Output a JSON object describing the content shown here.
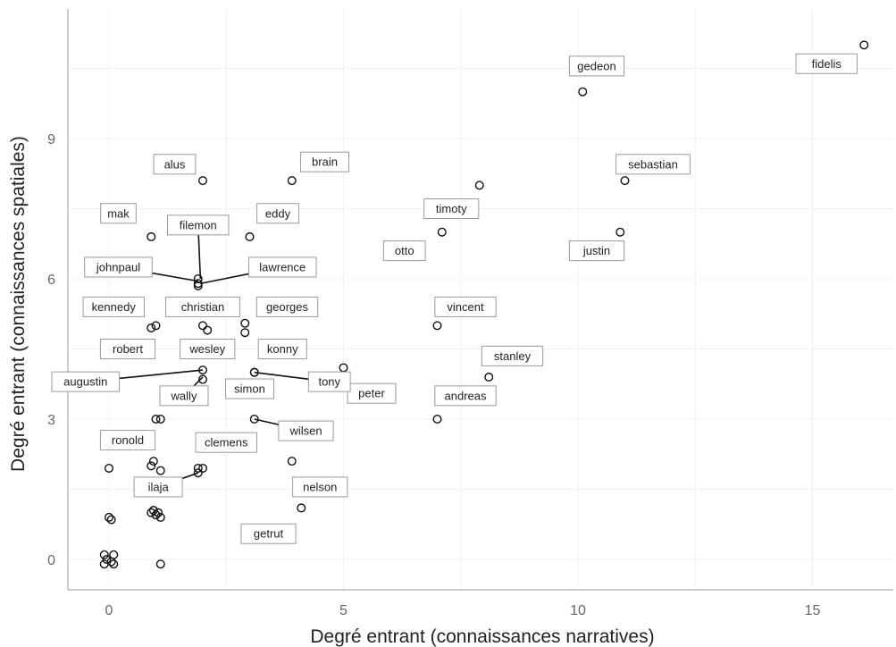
{
  "chart_data": {
    "type": "scatter",
    "title": "",
    "xlabel": "Degré entrant (connaissances narratives)",
    "ylabel": "Degré entrant (connaissances spatiales)",
    "xlim": [
      -1.5,
      16.5
    ],
    "ylim": [
      -0.8,
      11.6
    ],
    "xticks": [
      0,
      5,
      10,
      15
    ],
    "yticks": [
      0,
      3,
      6,
      9
    ],
    "grid": true,
    "points": [
      {
        "name": "fidelis",
        "x": 16.1,
        "y": 11.0
      },
      {
        "name": "gedeon",
        "x": 10.1,
        "y": 10.0
      },
      {
        "name": "sebastian",
        "x": 11.0,
        "y": 8.1
      },
      {
        "name": "justin",
        "x": 10.9,
        "y": 7.0
      },
      {
        "name": "timoty",
        "x": 7.9,
        "y": 8.0
      },
      {
        "name": "otto",
        "x": 7.1,
        "y": 7.0
      },
      {
        "name": "vincent",
        "x": 7.0,
        "y": 5.0
      },
      {
        "name": "stanley",
        "x": 8.1,
        "y": 3.9
      },
      {
        "name": "andreas",
        "x": 7.0,
        "y": 3.0
      },
      {
        "name": "peter",
        "x": 5.0,
        "y": 4.1
      },
      {
        "name": "brain",
        "x": 3.9,
        "y": 8.1
      },
      {
        "name": "alus",
        "x": 2.0,
        "y": 8.1
      },
      {
        "name": "eddy",
        "x": 3.0,
        "y": 6.9
      },
      {
        "name": "mak",
        "x": 0.9,
        "y": 6.9
      },
      {
        "name": "filemon",
        "x": 1.9,
        "y": 6.0
      },
      {
        "name": "johnpaul",
        "x": 1.9,
        "y": 5.9
      },
      {
        "name": "lawrence",
        "x": 1.9,
        "y": 5.85
      },
      {
        "name": "kennedy",
        "x": 0.9,
        "y": 4.95
      },
      {
        "name": "robert",
        "x": 1.0,
        "y": 5.0
      },
      {
        "name": "christian",
        "x": 2.0,
        "y": 5.0
      },
      {
        "name": "wesley",
        "x": 2.1,
        "y": 4.9
      },
      {
        "name": "georges",
        "x": 2.9,
        "y": 5.05
      },
      {
        "name": "konny",
        "x": 2.9,
        "y": 4.85
      },
      {
        "name": "augustin",
        "x": 2.0,
        "y": 4.05
      },
      {
        "name": "wally",
        "x": 2.0,
        "y": 3.85
      },
      {
        "name": "simon",
        "x": 3.1,
        "y": 4.0
      },
      {
        "name": "tony",
        "x": 3.1,
        "y": 4.0
      },
      {
        "name": "wilsen",
        "x": 3.1,
        "y": 3.0
      },
      {
        "name": "ronold",
        "x": 1.0,
        "y": 3.0
      },
      {
        "name": "",
        "x": 1.1,
        "y": 3.0
      },
      {
        "name": "clemens",
        "x": 2.0,
        "y": 1.95
      },
      {
        "name": "ilaja",
        "x": 1.9,
        "y": 1.85
      },
      {
        "name": "",
        "x": 1.9,
        "y": 1.95
      },
      {
        "name": "",
        "x": 3.9,
        "y": 2.1
      },
      {
        "name": "nelson",
        "x": 4.1,
        "y": 1.1
      },
      {
        "name": "getrut",
        "x": 1.1,
        "y": -0.1
      },
      {
        "name": "",
        "x": 0.0,
        "y": 1.95
      },
      {
        "name": "",
        "x": 0.9,
        "y": 2.0
      },
      {
        "name": "",
        "x": 0.95,
        "y": 2.1
      },
      {
        "name": "",
        "x": 1.1,
        "y": 1.9
      },
      {
        "name": "",
        "x": 0.9,
        "y": 1.0
      },
      {
        "name": "",
        "x": 0.95,
        "y": 1.05
      },
      {
        "name": "",
        "x": 1.0,
        "y": 0.95
      },
      {
        "name": "",
        "x": 1.05,
        "y": 1.0
      },
      {
        "name": "",
        "x": 1.1,
        "y": 0.9
      },
      {
        "name": "",
        "x": 0.0,
        "y": 0.9
      },
      {
        "name": "",
        "x": 0.05,
        "y": 0.85
      },
      {
        "name": "",
        "x": -0.1,
        "y": 0.1
      },
      {
        "name": "",
        "x": 0.1,
        "y": 0.1
      },
      {
        "name": "",
        "x": -0.1,
        "y": -0.1
      },
      {
        "name": "",
        "x": 0.05,
        "y": -0.05
      },
      {
        "name": "",
        "x": -0.05,
        "y": 0.0
      },
      {
        "name": "",
        "x": 0.1,
        "y": -0.1
      }
    ],
    "labels": [
      {
        "text": "fidelis",
        "x": 15.3,
        "y": 10.6
      },
      {
        "text": "gedeon",
        "x": 10.4,
        "y": 10.55
      },
      {
        "text": "sebastian",
        "x": 11.6,
        "y": 8.45
      },
      {
        "text": "justin",
        "x": 10.4,
        "y": 6.6
      },
      {
        "text": "timoty",
        "x": 7.3,
        "y": 7.5
      },
      {
        "text": "otto",
        "x": 6.3,
        "y": 6.6
      },
      {
        "text": "vincent",
        "x": 7.6,
        "y": 5.4
      },
      {
        "text": "stanley",
        "x": 8.6,
        "y": 4.35
      },
      {
        "text": "andreas",
        "x": 7.6,
        "y": 3.5
      },
      {
        "text": "peter",
        "x": 5.6,
        "y": 3.55
      },
      {
        "text": "brain",
        "x": 4.6,
        "y": 8.5
      },
      {
        "text": "alus",
        "x": 1.4,
        "y": 8.45
      },
      {
        "text": "eddy",
        "x": 3.6,
        "y": 7.4
      },
      {
        "text": "mak",
        "x": 0.2,
        "y": 7.4
      },
      {
        "text": "filemon",
        "x": 1.9,
        "y": 7.15
      },
      {
        "text": "johnpaul",
        "x": 0.2,
        "y": 6.25
      },
      {
        "text": "lawrence",
        "x": 3.7,
        "y": 6.25
      },
      {
        "text": "kennedy",
        "x": 0.1,
        "y": 5.4
      },
      {
        "text": "christian",
        "x": 2.0,
        "y": 5.4
      },
      {
        "text": "georges",
        "x": 3.8,
        "y": 5.4
      },
      {
        "text": "robert",
        "x": 0.4,
        "y": 4.5
      },
      {
        "text": "wesley",
        "x": 2.1,
        "y": 4.5
      },
      {
        "text": "konny",
        "x": 3.7,
        "y": 4.5
      },
      {
        "text": "augustin",
        "x": -0.5,
        "y": 3.8
      },
      {
        "text": "wally",
        "x": 1.6,
        "y": 3.5
      },
      {
        "text": "simon",
        "x": 3.0,
        "y": 3.65
      },
      {
        "text": "tony",
        "x": 4.7,
        "y": 3.8
      },
      {
        "text": "wilsen",
        "x": 4.2,
        "y": 2.75
      },
      {
        "text": "ronold",
        "x": 0.4,
        "y": 2.55
      },
      {
        "text": "clemens",
        "x": 2.5,
        "y": 2.5
      },
      {
        "text": "ilaja",
        "x": 1.05,
        "y": 1.55
      },
      {
        "text": "nelson",
        "x": 4.5,
        "y": 1.55
      },
      {
        "text": "getrut",
        "x": 3.4,
        "y": 0.55
      }
    ],
    "leader_lines": [
      {
        "label": "filemon",
        "x": 1.95,
        "y": 6.0
      },
      {
        "label": "johnpaul",
        "x": 1.9,
        "y": 5.95
      },
      {
        "label": "lawrence",
        "x": 1.95,
        "y": 5.9
      },
      {
        "label": "augustin",
        "x": 2.0,
        "y": 4.05
      },
      {
        "label": "wally",
        "x": 2.0,
        "y": 3.9
      },
      {
        "label": "tony",
        "x": 3.1,
        "y": 4.0
      },
      {
        "label": "wilsen",
        "x": 3.1,
        "y": 3.0
      },
      {
        "label": "ilaja",
        "x": 1.9,
        "y": 1.85
      }
    ]
  }
}
